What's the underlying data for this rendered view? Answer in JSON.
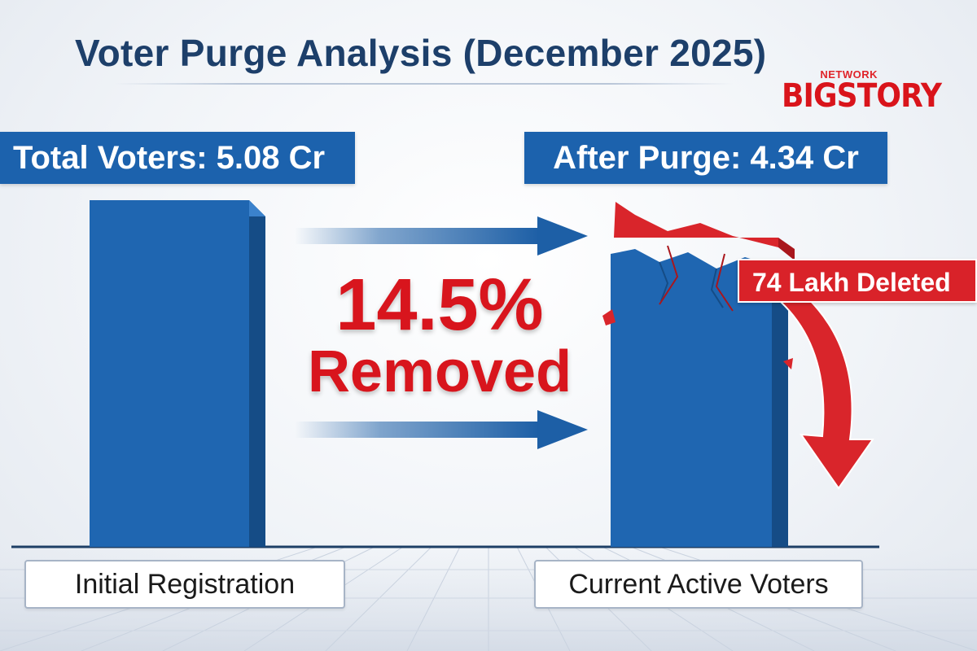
{
  "chart_data": {
    "type": "bar",
    "title": "Voter Purge Analysis (December 2025)",
    "categories": [
      "Initial Registration",
      "Current Active Voters"
    ],
    "values": [
      5.08,
      4.34
    ],
    "value_labels": [
      "Total Voters: 5.08 Cr",
      "After Purge: 4.34 Cr"
    ],
    "units": "Cr",
    "ylim": [
      0,
      5.08
    ],
    "deleted_label": "74 Lakh Deleted",
    "annotation_pct": "14.5%",
    "annotation_word": "Removed",
    "grid": false,
    "colors": {
      "bar": "#1f66b1",
      "bar_dark": "#154c86",
      "bar_light": "#3b82cc",
      "deleted": "#d9252b",
      "deleted_dark": "#a9161c",
      "arrow": "#1d5fa6"
    }
  },
  "logo": {
    "network": "NETWORK",
    "main": "BIGSTORY"
  }
}
